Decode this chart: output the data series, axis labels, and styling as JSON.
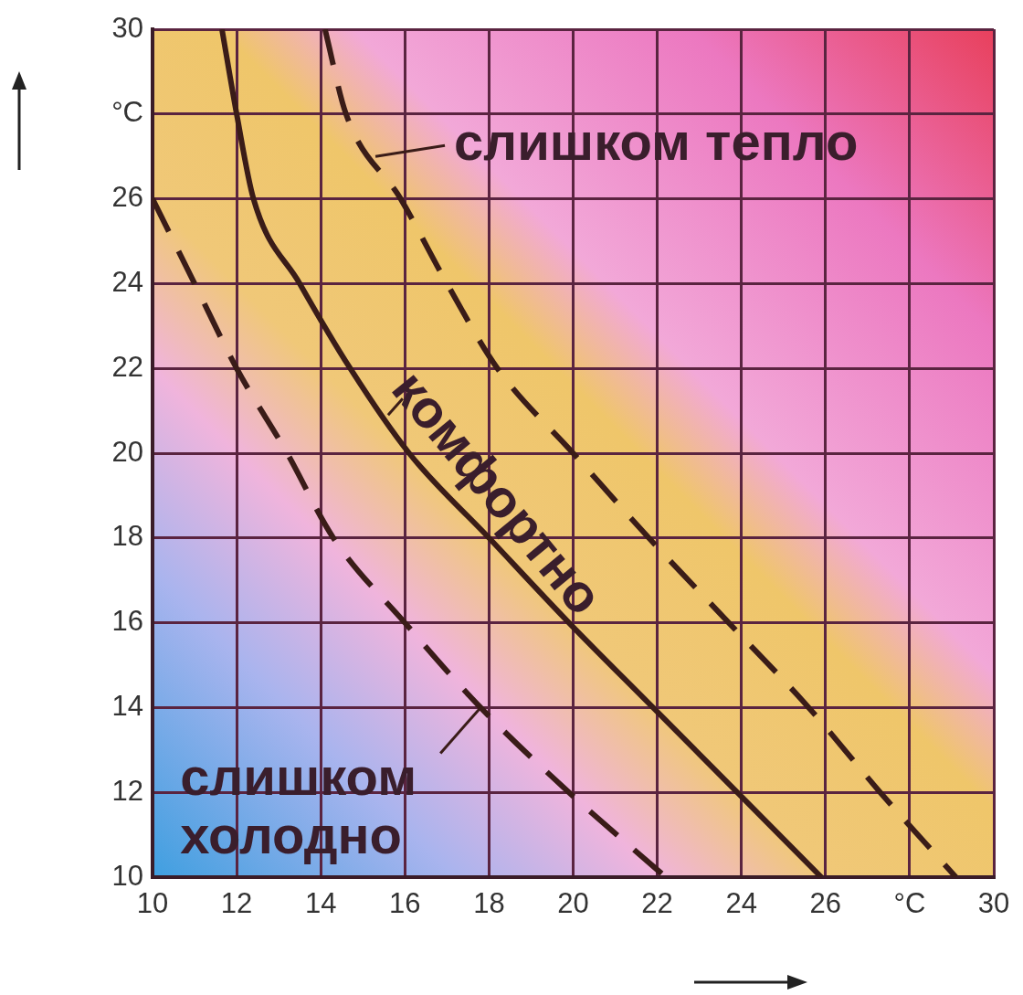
{
  "chart_data": {
    "type": "line",
    "series": [
      {
        "color": "#3a1c18",
        "line_style": "dashed",
        "x": [
          10,
          11,
          12,
          13.2,
          14.3,
          16,
          17.8,
          19.9,
          22.2
        ],
        "values": [
          26,
          24,
          22,
          20,
          18,
          16,
          14,
          12,
          10
        ]
      },
      {
        "color": "#3a1c18",
        "line_style": "solid",
        "x": [
          11.65,
          12,
          12.4,
          13.5,
          14.7,
          16.1,
          18,
          19.9,
          21.9,
          23.9,
          25.9
        ],
        "values": [
          30,
          28,
          26,
          24,
          22,
          20,
          18,
          16,
          14,
          12,
          10
        ]
      },
      {
        "color": "#3a1c18",
        "line_style": "dashed",
        "x": [
          14.1,
          14.6,
          15.9,
          17,
          18.2,
          20,
          21.8,
          23.7,
          25.6,
          27.3,
          29.1
        ],
        "values": [
          30,
          28,
          26,
          24,
          22,
          20,
          18,
          16,
          14,
          12,
          10
        ]
      }
    ],
    "xlim": [
      10,
      30
    ],
    "ylim": [
      10,
      30
    ],
    "xticks": [
      10,
      12,
      14,
      16,
      18,
      20,
      22,
      24,
      26,
      {
        "value": 28,
        "label": "°C"
      },
      30
    ],
    "yticks": [
      10,
      12,
      14,
      16,
      18,
      20,
      22,
      24,
      26,
      {
        "value": 28,
        "label": "°C"
      },
      30
    ],
    "grid": true,
    "marker": "none",
    "annotations": [
      {
        "text": "слишком тепло",
        "x": 15.3,
        "y": 27
      },
      {
        "text": "комфортно",
        "x": 15.6,
        "y": 20.9
      },
      {
        "text": "слишком холодно",
        "x": 17.8,
        "y": 14
      }
    ]
  }
}
